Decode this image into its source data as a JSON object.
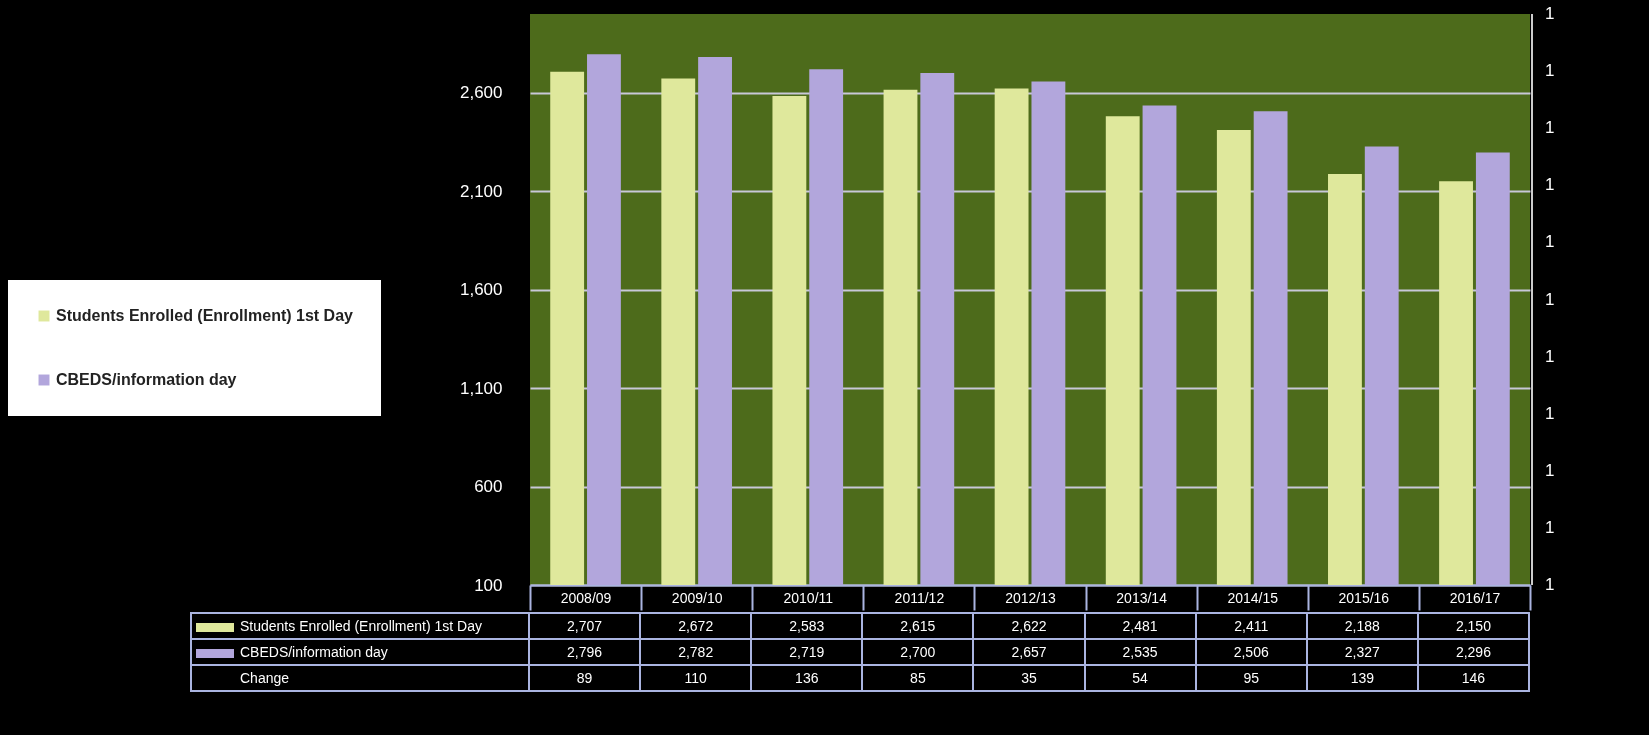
{
  "chart_data": {
    "type": "bar",
    "categories": [
      "2008/09",
      "2009/10",
      "2010/11",
      "2011/12",
      "2012/13",
      "2013/14",
      "2014/15",
      "2015/16",
      "2016/17"
    ],
    "series": [
      {
        "name": "Students Enrolled (Enrollment) 1st Day",
        "color": "#dfe89c",
        "values": [
          2707,
          2672,
          2583,
          2615,
          2622,
          2481,
          2411,
          2188,
          2150
        ],
        "value_labels": [
          "2,707",
          "2,672",
          "2,583",
          "2,615",
          "2,622",
          "2,481",
          "2,411",
          "2,188",
          "2,150"
        ]
      },
      {
        "name": "CBEDS/information day",
        "color": "#b2a6dc",
        "values": [
          2796,
          2782,
          2719,
          2700,
          2657,
          2535,
          2506,
          2327,
          2296
        ],
        "value_labels": [
          "2,796",
          "2,782",
          "2,719",
          "2,700",
          "2,657",
          "2,535",
          "2,506",
          "2,327",
          "2,296"
        ]
      },
      {
        "name": "Change",
        "type": "other",
        "values": [
          null,
          null,
          null,
          null,
          null,
          null,
          null,
          null,
          null
        ],
        "value_labels": [
          "89",
          "110",
          "136",
          "85",
          "35",
          "54",
          "95",
          "139",
          "146"
        ]
      }
    ],
    "ylim": [
      100,
      3000
    ],
    "yticks": [
      {
        "value": 100,
        "label": "100"
      },
      {
        "value": 600,
        "label": "600"
      },
      {
        "value": 1100,
        "label": "1,100"
      },
      {
        "value": 1600,
        "label": "1,600"
      },
      {
        "value": 2100,
        "label": "2,100"
      },
      {
        "value": 2600,
        "label": "2,600"
      }
    ],
    "annotations": [
      "1",
      "1",
      "1",
      "1",
      "1",
      "1",
      "1",
      "1",
      "1",
      "1",
      "1"
    ],
    "grid": "y",
    "legend": "left"
  }
}
